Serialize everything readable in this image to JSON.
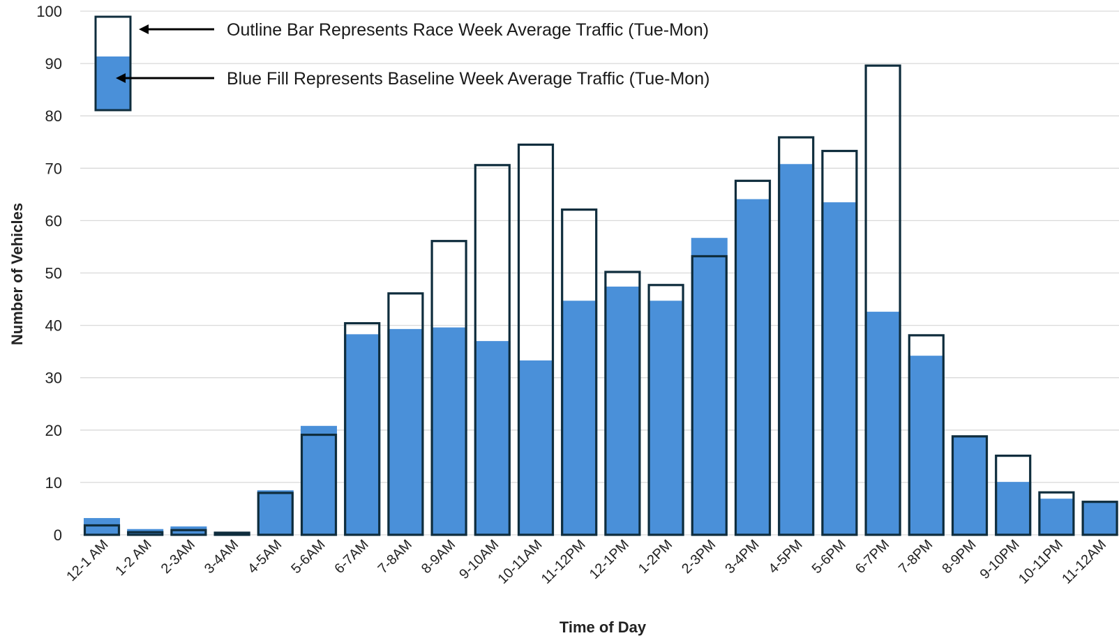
{
  "chart_data": {
    "type": "bar",
    "title": "",
    "xlabel": "Time of Day",
    "ylabel": "Number of Vehicles",
    "ylim": [
      0,
      100
    ],
    "yticks": [
      0,
      10,
      20,
      30,
      40,
      50,
      60,
      70,
      80,
      90,
      100
    ],
    "grid": true,
    "categories": [
      "12-1 AM",
      "1-2 AM",
      "2-3AM",
      "3-4AM",
      "4-5AM",
      "5-6AM",
      "6-7AM",
      "7-8AM",
      "8-9AM",
      "9-10AM",
      "10-11AM",
      "11-12PM",
      "12-1PM",
      "1-2PM",
      "2-3PM",
      "3-4PM",
      "4-5PM",
      "5-6PM",
      "6-7PM",
      "7-8PM",
      "8-9PM",
      "9-10PM",
      "10-11PM",
      "11-12AM"
    ],
    "series": [
      {
        "name": "Baseline Week Average Traffic (Tue-Mon)",
        "style": "fill",
        "color": "#4A90D9",
        "values": [
          3.2,
          1.1,
          1.6,
          0.4,
          8.5,
          20.8,
          38.3,
          39.3,
          39.6,
          37.0,
          33.3,
          44.7,
          47.4,
          44.7,
          56.7,
          64.1,
          70.8,
          63.5,
          42.6,
          34.2,
          18.8,
          10.1,
          6.9,
          6.3
        ]
      },
      {
        "name": "Race Week Average Traffic (Tue-Mon)",
        "style": "outline",
        "color": "#0f2d3d",
        "values": [
          1.8,
          0.5,
          0.9,
          0.4,
          8.0,
          19.1,
          40.4,
          46.1,
          56.1,
          70.6,
          74.5,
          62.1,
          50.2,
          47.7,
          53.2,
          67.6,
          75.9,
          73.3,
          89.6,
          38.1,
          18.8,
          15.1,
          8.1,
          6.3
        ]
      }
    ],
    "legend": {
      "position": "top-left",
      "outline_label": "Outline Bar Represents Race Week Average Traffic (Tue-Mon)",
      "fill_label": "Blue Fill Represents Baseline Week Average Traffic (Tue-Mon)"
    }
  }
}
